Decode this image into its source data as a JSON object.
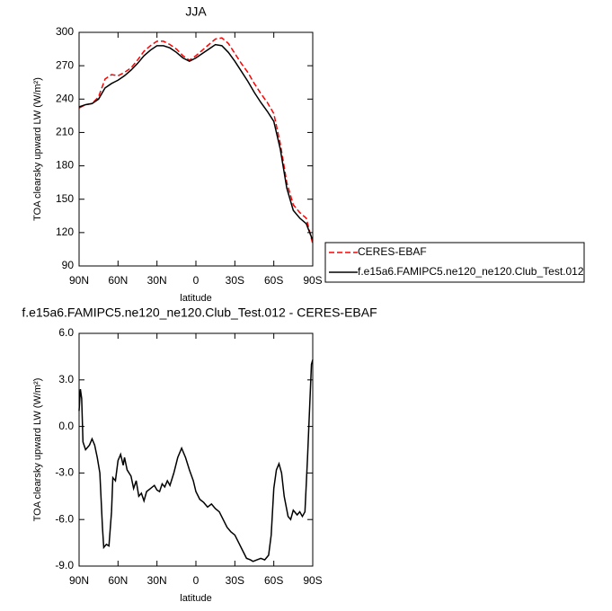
{
  "chart_data": [
    {
      "type": "line",
      "title": "JJA",
      "x_label": "latitude",
      "y_label": "TOA clearsky upward LW (W/m²)",
      "x": [
        90,
        85,
        80,
        75,
        70,
        65,
        60,
        55,
        50,
        45,
        40,
        35,
        30,
        25,
        20,
        15,
        10,
        5,
        0,
        -5,
        -10,
        -15,
        -20,
        -25,
        -30,
        -35,
        -40,
        -45,
        -50,
        -55,
        -60,
        -65,
        -70,
        -75,
        -80,
        -85,
        -90
      ],
      "series": [
        {
          "name": "CERES-EBAF",
          "color": "#ff0000",
          "line_style": "dashed",
          "values": [
            232,
            235,
            236,
            242,
            258,
            262,
            261,
            264,
            268,
            275,
            283,
            288,
            292,
            292,
            289,
            285,
            279,
            275,
            279,
            284,
            289,
            294,
            295,
            290,
            281,
            272,
            264,
            254,
            245,
            237,
            227,
            200,
            165,
            145,
            138,
            133,
            110
          ]
        },
        {
          "name": "f.e15a6.FAMIPC5.ne120_ne120.Club_Test.012",
          "color": "#000000",
          "line_style": "solid",
          "values": [
            233,
            235,
            236,
            240,
            250,
            254,
            257,
            261,
            266,
            272,
            279,
            284,
            288,
            288,
            286,
            282,
            277,
            274,
            277,
            281,
            285,
            289,
            288,
            282,
            274,
            265,
            256,
            246,
            237,
            229,
            220,
            195,
            160,
            140,
            133,
            128,
            113
          ]
        }
      ],
      "xlim": [
        90,
        -90
      ],
      "xticks": [
        {
          "value": 90,
          "label": "90N"
        },
        {
          "value": 60,
          "label": "60N"
        },
        {
          "value": 30,
          "label": "30N"
        },
        0,
        {
          "value": -30,
          "label": "30S"
        },
        {
          "value": -60,
          "label": "60S"
        },
        {
          "value": -90,
          "label": "90S"
        }
      ],
      "ylim": [
        90,
        300
      ],
      "yticks": [
        90,
        120,
        150,
        180,
        210,
        240,
        270,
        300
      ],
      "grid": false,
      "legend": "right"
    },
    {
      "type": "line",
      "title": "f.e15a6.FAMIPC5.ne120_ne120.Club_Test.012 - CERES-EBAF",
      "x_label": "latitude",
      "y_label": "TOA clearsky upward LW (W/m²)",
      "x": [
        90,
        89,
        88,
        87,
        85,
        82,
        80,
        78,
        76,
        74,
        72,
        71,
        69,
        67,
        65,
        64,
        62,
        60,
        58,
        56,
        55,
        53,
        50,
        48,
        46,
        44,
        42,
        40,
        38,
        35,
        32,
        30,
        28,
        26,
        24,
        22,
        20,
        17,
        14,
        11,
        8,
        5,
        2,
        0,
        -3,
        -6,
        -9,
        -12,
        -15,
        -18,
        -21,
        -24,
        -27,
        -30,
        -33,
        -36,
        -39,
        -42,
        -44,
        -47,
        -50,
        -53,
        -56,
        -58,
        -60,
        -62,
        -64,
        -66,
        -68,
        -71,
        -73,
        -75,
        -78,
        -80,
        -82,
        -84,
        -86,
        -88,
        -89,
        -90
      ],
      "series": [
        {
          "color": "#000000",
          "line_style": "solid",
          "values": [
            1.0,
            2.4,
            1.8,
            -1.0,
            -1.5,
            -1.2,
            -0.8,
            -1.2,
            -2.0,
            -3.0,
            -6.5,
            -7.8,
            -7.6,
            -7.7,
            -5.5,
            -3.3,
            -3.5,
            -2.2,
            -1.8,
            -2.5,
            -2.0,
            -2.8,
            -3.2,
            -4.0,
            -3.5,
            -4.5,
            -4.3,
            -4.8,
            -4.2,
            -4.0,
            -3.8,
            -4.1,
            -4.2,
            -3.7,
            -3.9,
            -3.5,
            -3.8,
            -3.0,
            -2.0,
            -1.4,
            -2.0,
            -2.8,
            -3.5,
            -4.2,
            -4.7,
            -4.9,
            -5.2,
            -5.0,
            -5.3,
            -5.5,
            -6.0,
            -6.5,
            -6.8,
            -7.0,
            -7.5,
            -8.0,
            -8.5,
            -8.6,
            -8.7,
            -8.6,
            -8.5,
            -8.6,
            -8.3,
            -7.0,
            -4.0,
            -2.8,
            -2.4,
            -3.0,
            -4.5,
            -5.8,
            -6.0,
            -5.4,
            -5.7,
            -5.5,
            -5.8,
            -5.5,
            -2.0,
            2.0,
            4.0,
            4.3
          ]
        }
      ],
      "xlim": [
        90,
        -90
      ],
      "xticks": [
        {
          "value": 90,
          "label": "90N"
        },
        {
          "value": 60,
          "label": "60N"
        },
        {
          "value": 30,
          "label": "30N"
        },
        0,
        {
          "value": -30,
          "label": "30S"
        },
        {
          "value": -60,
          "label": "60S"
        },
        {
          "value": -90,
          "label": "90S"
        }
      ],
      "ylim": [
        -9,
        6
      ],
      "yticks": [
        {
          "value": 6,
          "label": "6.0"
        },
        {
          "value": 3,
          "label": "3.0"
        },
        {
          "value": 0,
          "label": "0.0"
        },
        {
          "value": -3,
          "label": "-3.0"
        },
        {
          "value": -6,
          "label": "-6.0"
        },
        {
          "value": -9,
          "label": "-9.0"
        }
      ],
      "grid": false
    }
  ]
}
